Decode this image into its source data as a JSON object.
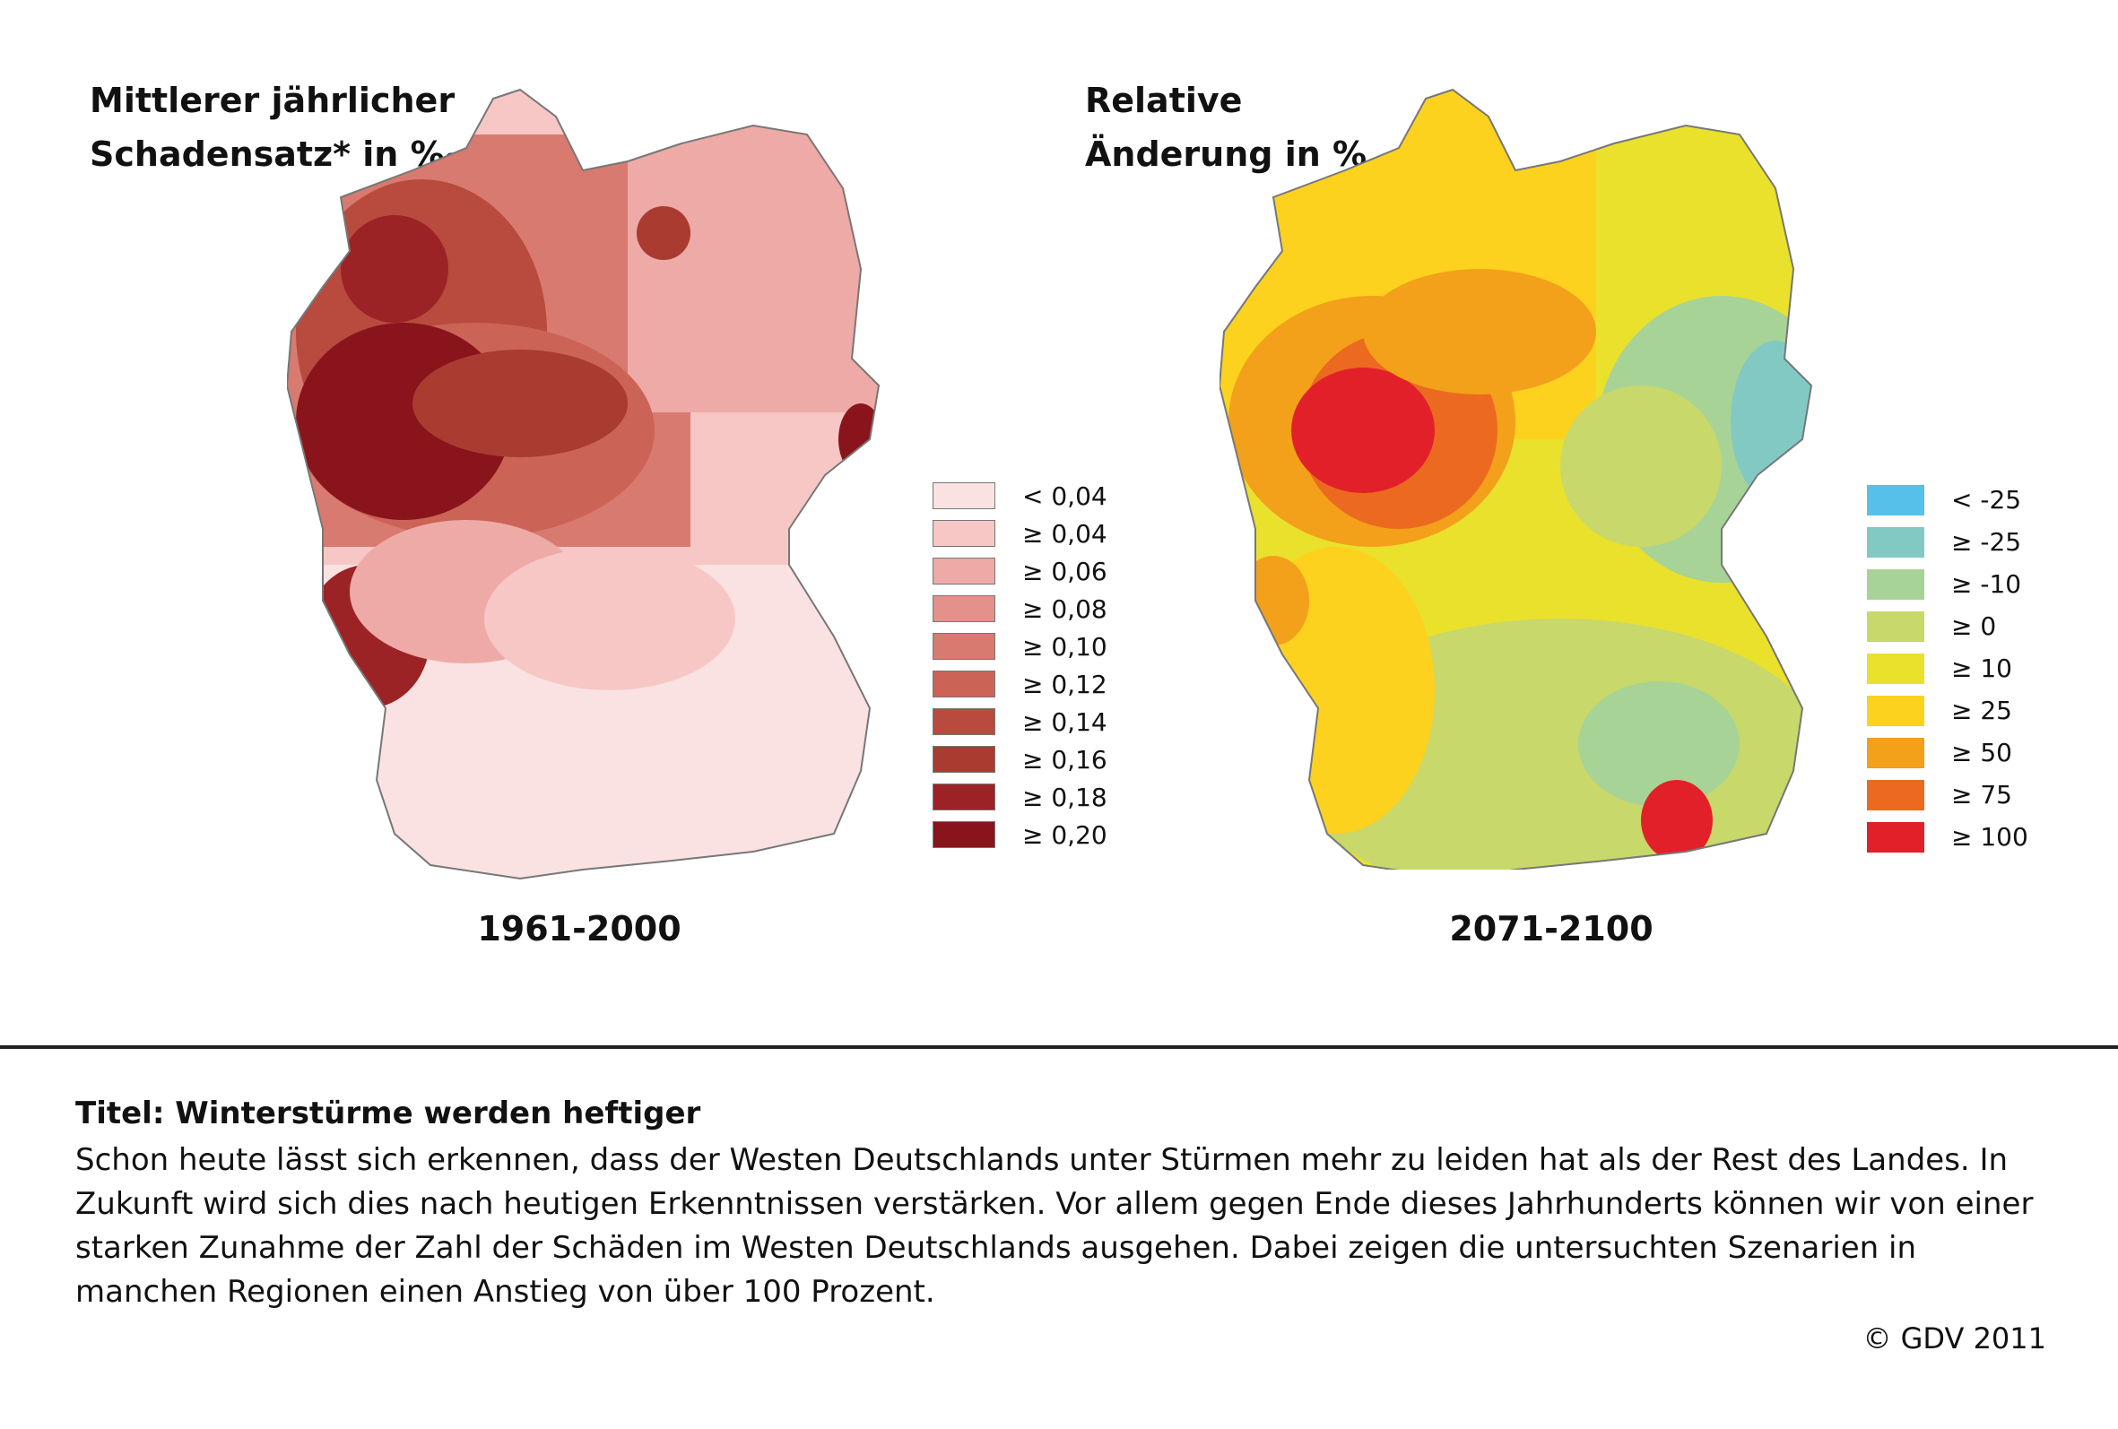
{
  "left_panel": {
    "title": "Mittlerer jährlicher\nSchadensatz* in ‰",
    "period": "1961-2000",
    "legend": [
      {
        "label": "< 0,04",
        "color": "#fbe2e2"
      },
      {
        "label": "≥ 0,04",
        "color": "#f6c7c4"
      },
      {
        "label": "≥ 0,06",
        "color": "#eeaaa6"
      },
      {
        "label": "≥ 0,08",
        "color": "#e3918a"
      },
      {
        "label": "≥ 0,10",
        "color": "#d87a70"
      },
      {
        "label": "≥ 0,12",
        "color": "#cc6357"
      },
      {
        "label": "≥ 0,14",
        "color": "#b94a3e"
      },
      {
        "label": "≥ 0,16",
        "color": "#a93b30"
      },
      {
        "label": "≥ 0,18",
        "color": "#9b2326"
      },
      {
        "label": "≥ 0,20",
        "color": "#89141b"
      }
    ]
  },
  "right_panel": {
    "title": "Relative\nÄnderung in %",
    "period": "2071-2100",
    "legend": [
      {
        "label": "< -25",
        "color": "#57c0ea"
      },
      {
        "label": "≥ -25",
        "color": "#82c9c4"
      },
      {
        "label": "≥ -10",
        "color": "#a7d397"
      },
      {
        "label": "≥ 0",
        "color": "#c8d86a"
      },
      {
        "label": "≥ 10",
        "color": "#eae12c"
      },
      {
        "label": "≥ 25",
        "color": "#fcd21e"
      },
      {
        "label": "≥ 50",
        "color": "#f3a01a"
      },
      {
        "label": "≥ 75",
        "color": "#ec6a20"
      },
      {
        "label": "≥ 100",
        "color": "#e2202a"
      }
    ]
  },
  "caption": {
    "title": "Titel: Winterstürme werden heftiger",
    "text": "Schon heute lässt sich erkennen, dass der Westen Deutschlands unter Stürmen mehr zu leiden hat als der Rest des Landes. In Zukunft wird sich dies nach heutigen Erkenntnissen verstärken. Vor allem gegen Ende dieses Jahrhunderts können wir von einer starken Zunahme der Zahl der Schäden im Westen Deutschlands ausgehen. Dabei zeigen die untersuchten Szenarien in manchen Regionen einen Anstieg von über 100 Prozent."
  },
  "copyright": "© GDV 2011"
}
